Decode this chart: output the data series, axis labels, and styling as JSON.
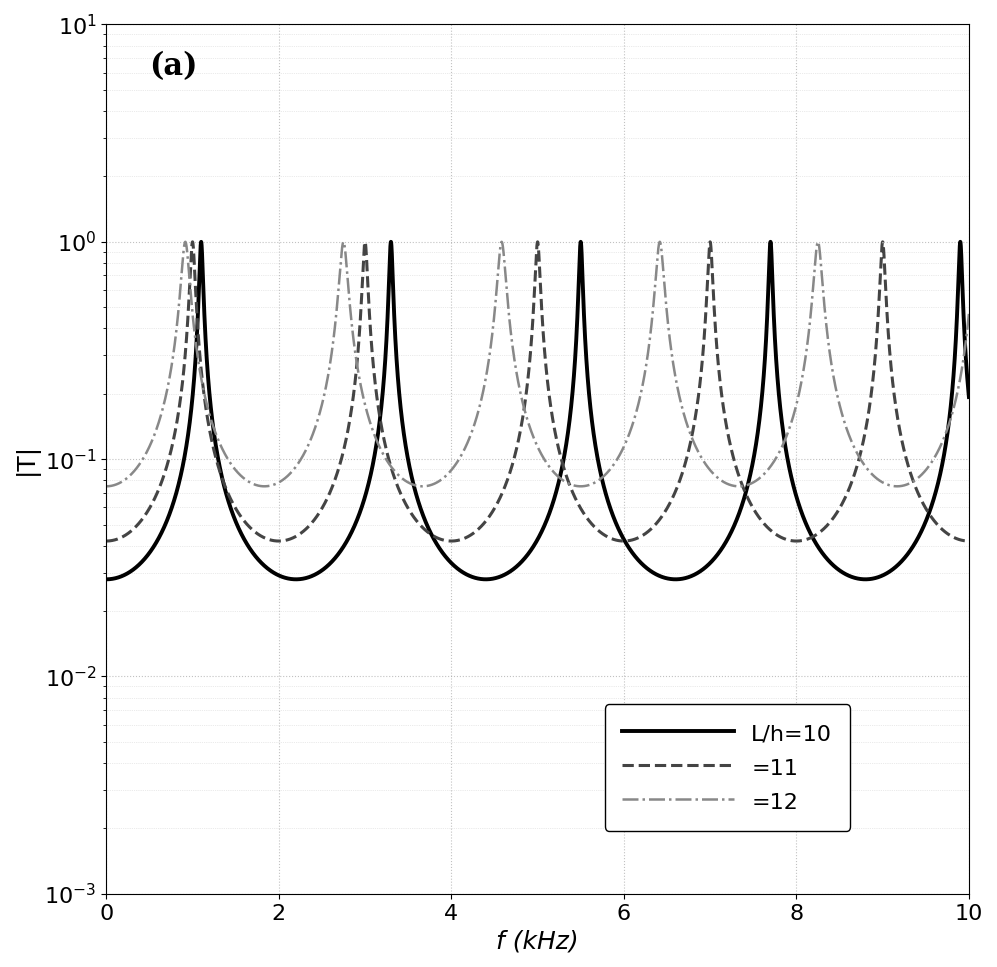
{
  "xlabel": "f (kHz)",
  "ylabel": "|T|",
  "xlim": [
    0,
    10
  ],
  "ylim": [
    0.001,
    10
  ],
  "curves": [
    {
      "label": "L/h=10",
      "linestyle": "solid",
      "color": "#000000",
      "linewidth": 2.8,
      "Lh": 10
    },
    {
      "label": "=11",
      "linestyle": "dashed",
      "color": "#444444",
      "linewidth": 2.2,
      "Lh": 11
    },
    {
      "label": "=12",
      "linestyle": "dashdot",
      "color": "#888888",
      "linewidth": 1.8,
      "Lh": 12
    }
  ],
  "grid_color": "#999999",
  "grid_alpha": 0.6,
  "background_color": "#ffffff",
  "label_fontsize": 18,
  "tick_fontsize": 16,
  "legend_fontsize": 16,
  "xticks": [
    0,
    2,
    4,
    6,
    8,
    10
  ],
  "panel_label": "(a)",
  "f_base_C": 11.0,
  "T0": 0.028,
  "gamma": 0.028,
  "start_val": 0.016,
  "min_val": 0.006
}
